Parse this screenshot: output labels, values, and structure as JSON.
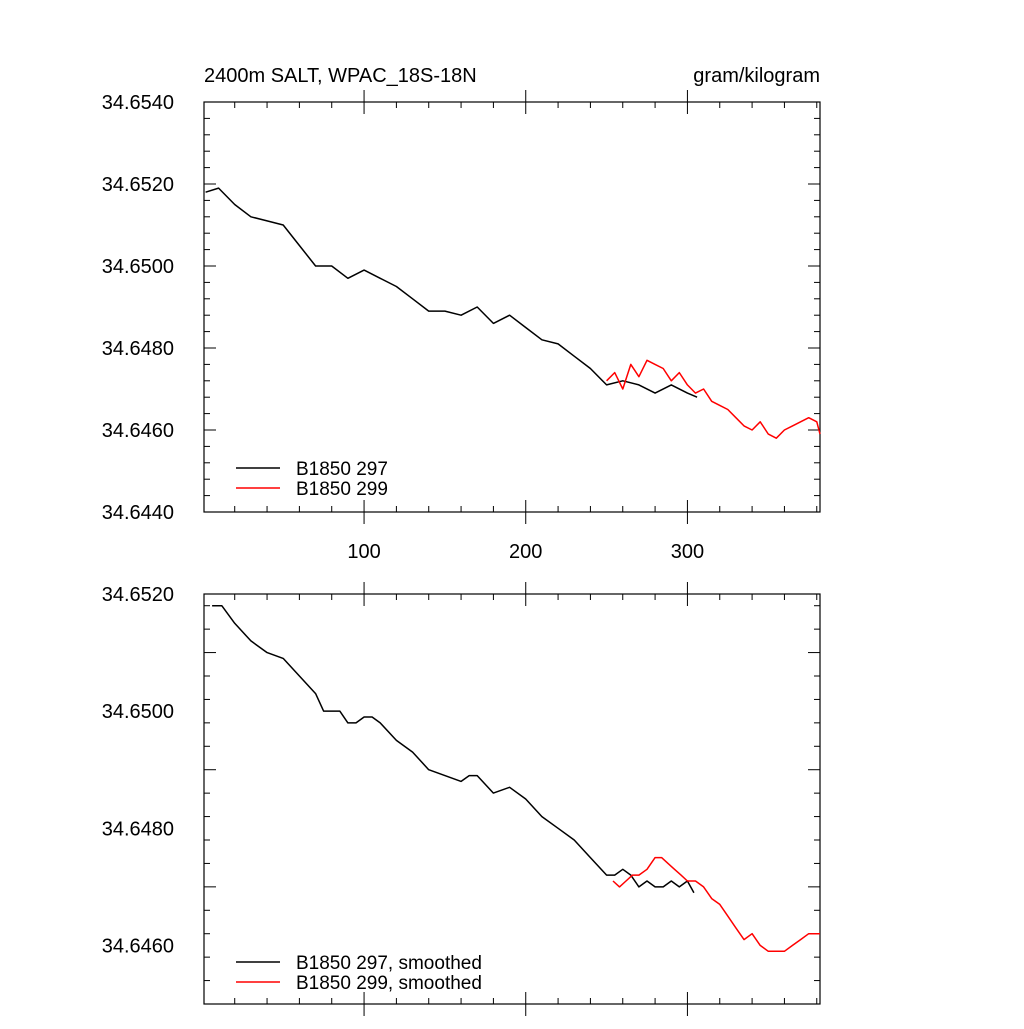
{
  "figure": {
    "title_left": "2400m SALT, WPAC_18S-18N",
    "title_right": "gram/kilogram"
  },
  "chart_data": [
    {
      "type": "line",
      "title": "2400m SALT, WPAC_18S-18N",
      "units": "gram/kilogram",
      "xlim": [
        1,
        382
      ],
      "ylim": [
        34.644,
        34.654
      ],
      "x_ticks": [
        100,
        200,
        300
      ],
      "x_tick_labels": [
        "100",
        "200",
        "300"
      ],
      "y_ticks": [
        34.644,
        34.646,
        34.648,
        34.65,
        34.652,
        34.654
      ],
      "y_tick_labels": [
        "34.6440",
        "34.6460",
        "34.6480",
        "34.6500",
        "34.6520",
        "34.6540"
      ],
      "legend_position": "bottom-left",
      "series": [
        {
          "name": "B1850 297",
          "color": "#000000",
          "x": [
            2,
            10,
            20,
            30,
            40,
            50,
            60,
            70,
            80,
            90,
            100,
            110,
            120,
            130,
            140,
            150,
            160,
            170,
            180,
            190,
            200,
            210,
            220,
            230,
            240,
            250,
            260,
            270,
            280,
            290,
            300,
            306
          ],
          "y": [
            34.6518,
            34.6519,
            34.6515,
            34.6512,
            34.6511,
            34.651,
            34.6505,
            34.65,
            34.65,
            34.6497,
            34.6499,
            34.6497,
            34.6495,
            34.6492,
            34.6489,
            34.6489,
            34.6488,
            34.649,
            34.6486,
            34.6488,
            34.6485,
            34.6482,
            34.6481,
            34.6478,
            34.6475,
            34.6471,
            34.6472,
            34.6471,
            34.6469,
            34.6471,
            34.6469,
            34.6468
          ]
        },
        {
          "name": "B1850 299",
          "color": "#ff0000",
          "x": [
            250,
            255,
            260,
            265,
            270,
            275,
            280,
            285,
            290,
            295,
            300,
            305,
            310,
            315,
            320,
            325,
            330,
            335,
            340,
            345,
            350,
            355,
            360,
            365,
            370,
            375,
            380,
            382
          ],
          "y": [
            34.6472,
            34.6474,
            34.647,
            34.6476,
            34.6473,
            34.6477,
            34.6476,
            34.6475,
            34.6472,
            34.6474,
            34.6471,
            34.6469,
            34.647,
            34.6467,
            34.6466,
            34.6465,
            34.6463,
            34.6461,
            34.646,
            34.6462,
            34.6459,
            34.6458,
            34.646,
            34.6461,
            34.6462,
            34.6463,
            34.6462,
            34.6459
          ]
        }
      ]
    },
    {
      "type": "line",
      "xlim": [
        1,
        382
      ],
      "ylim": [
        34.645,
        34.652
      ],
      "x_ticks": [
        100,
        200,
        300
      ],
      "y_ticks": [
        34.646,
        34.648,
        34.65,
        34.652
      ],
      "y_tick_labels": [
        "34.6460",
        "34.6480",
        "34.6500",
        "34.6520"
      ],
      "legend_position": "bottom-left",
      "series": [
        {
          "name": "B1850 297, smoothed",
          "color": "#000000",
          "x": [
            6,
            12,
            20,
            30,
            40,
            50,
            60,
            70,
            75,
            80,
            85,
            90,
            95,
            100,
            105,
            110,
            120,
            130,
            140,
            150,
            160,
            165,
            170,
            180,
            190,
            200,
            210,
            220,
            230,
            240,
            250,
            255,
            260,
            265,
            270,
            275,
            280,
            285,
            290,
            295,
            300,
            304
          ],
          "y": [
            34.6518,
            34.6518,
            34.6515,
            34.6512,
            34.651,
            34.6509,
            34.6506,
            34.6503,
            34.65,
            34.65,
            34.65,
            34.6498,
            34.6498,
            34.6499,
            34.6499,
            34.6498,
            34.6495,
            34.6493,
            34.649,
            34.6489,
            34.6488,
            34.6489,
            34.6489,
            34.6486,
            34.6487,
            34.6485,
            34.6482,
            34.648,
            34.6478,
            34.6475,
            34.6472,
            34.6472,
            34.6473,
            34.6472,
            34.647,
            34.6471,
            34.647,
            34.647,
            34.6471,
            34.647,
            34.6471,
            34.6469
          ]
        },
        {
          "name": "B1850 299, smoothed",
          "color": "#ff0000",
          "x": [
            254,
            258,
            262,
            266,
            270,
            275,
            280,
            284,
            288,
            292,
            296,
            300,
            305,
            310,
            315,
            320,
            325,
            330,
            335,
            340,
            345,
            350,
            355,
            360,
            365,
            370,
            375,
            380,
            382
          ],
          "y": [
            34.6471,
            34.647,
            34.6471,
            34.6472,
            34.6472,
            34.6473,
            34.6475,
            34.6475,
            34.6474,
            34.6473,
            34.6472,
            34.6471,
            34.6471,
            34.647,
            34.6468,
            34.6467,
            34.6465,
            34.6463,
            34.6461,
            34.6462,
            34.646,
            34.6459,
            34.6459,
            34.6459,
            34.646,
            34.6461,
            34.6462,
            34.6462,
            34.6462
          ]
        }
      ]
    }
  ]
}
